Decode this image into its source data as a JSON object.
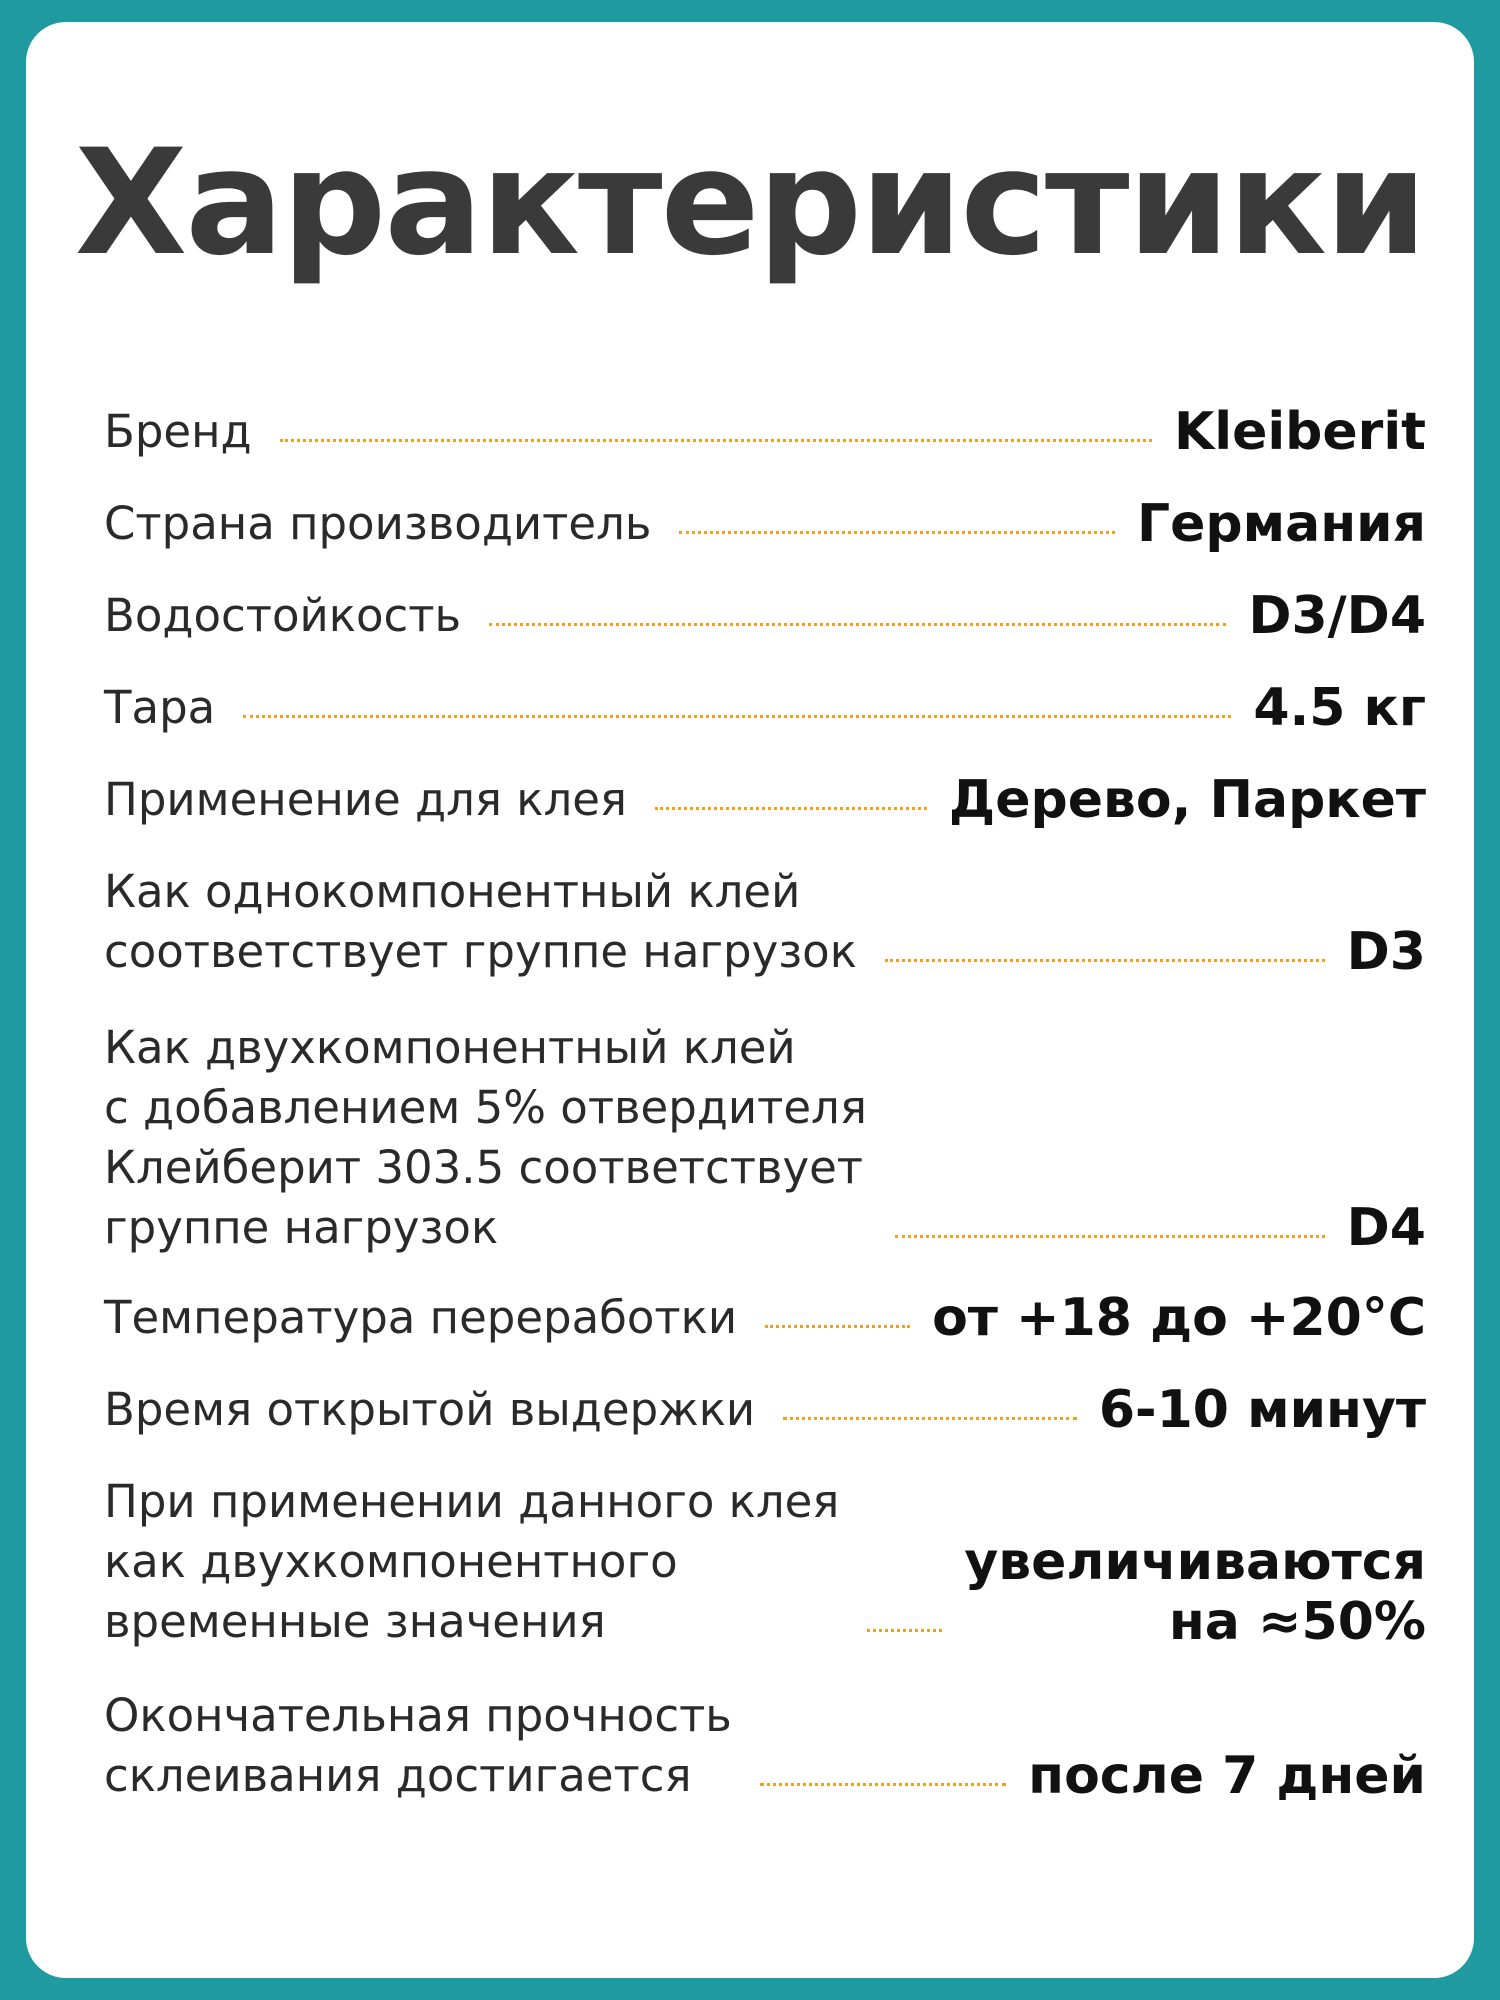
{
  "title": "Характеристики",
  "rows": [
    {
      "label": [
        "Бренд"
      ],
      "value": [
        "Kleiberit"
      ]
    },
    {
      "label": [
        "Страна производитель"
      ],
      "value": [
        "Германия"
      ]
    },
    {
      "label": [
        "Водостойкость"
      ],
      "value": [
        "D3/D4"
      ]
    },
    {
      "label": [
        "Тара"
      ],
      "value": [
        "4.5 кг"
      ]
    },
    {
      "label": [
        "Применение для клея"
      ],
      "value": [
        "Дерево, Паркет"
      ]
    },
    {
      "label": [
        "Как однокомпонентный клей",
        "соответствует группе нагрузок"
      ],
      "value": [
        "D3"
      ]
    },
    {
      "label": [
        "Как двухкомпонентный клей",
        "с добавлением 5% отвердителя",
        "Клейберит 303.5 соответствует",
        "группе нагрузок"
      ],
      "value": [
        "D4"
      ]
    },
    {
      "label": [
        "Температура переработки"
      ],
      "value": [
        "от +18 до +20°C"
      ]
    },
    {
      "label": [
        "Время открытой выдержки"
      ],
      "value": [
        "6-10 минут"
      ]
    },
    {
      "label": [
        "При применении данного клея",
        "как двухкомпонентного",
        "временные значения"
      ],
      "value": [
        "увеличиваются",
        "на ≈50%"
      ]
    },
    {
      "label": [
        "Окончательная прочность",
        "склеивания достигается"
      ],
      "value": [
        "после 7 дней"
      ]
    }
  ],
  "colors": {
    "border": "#1e9aa0",
    "dots": "#f0a020",
    "title": "#3a3a3a"
  }
}
